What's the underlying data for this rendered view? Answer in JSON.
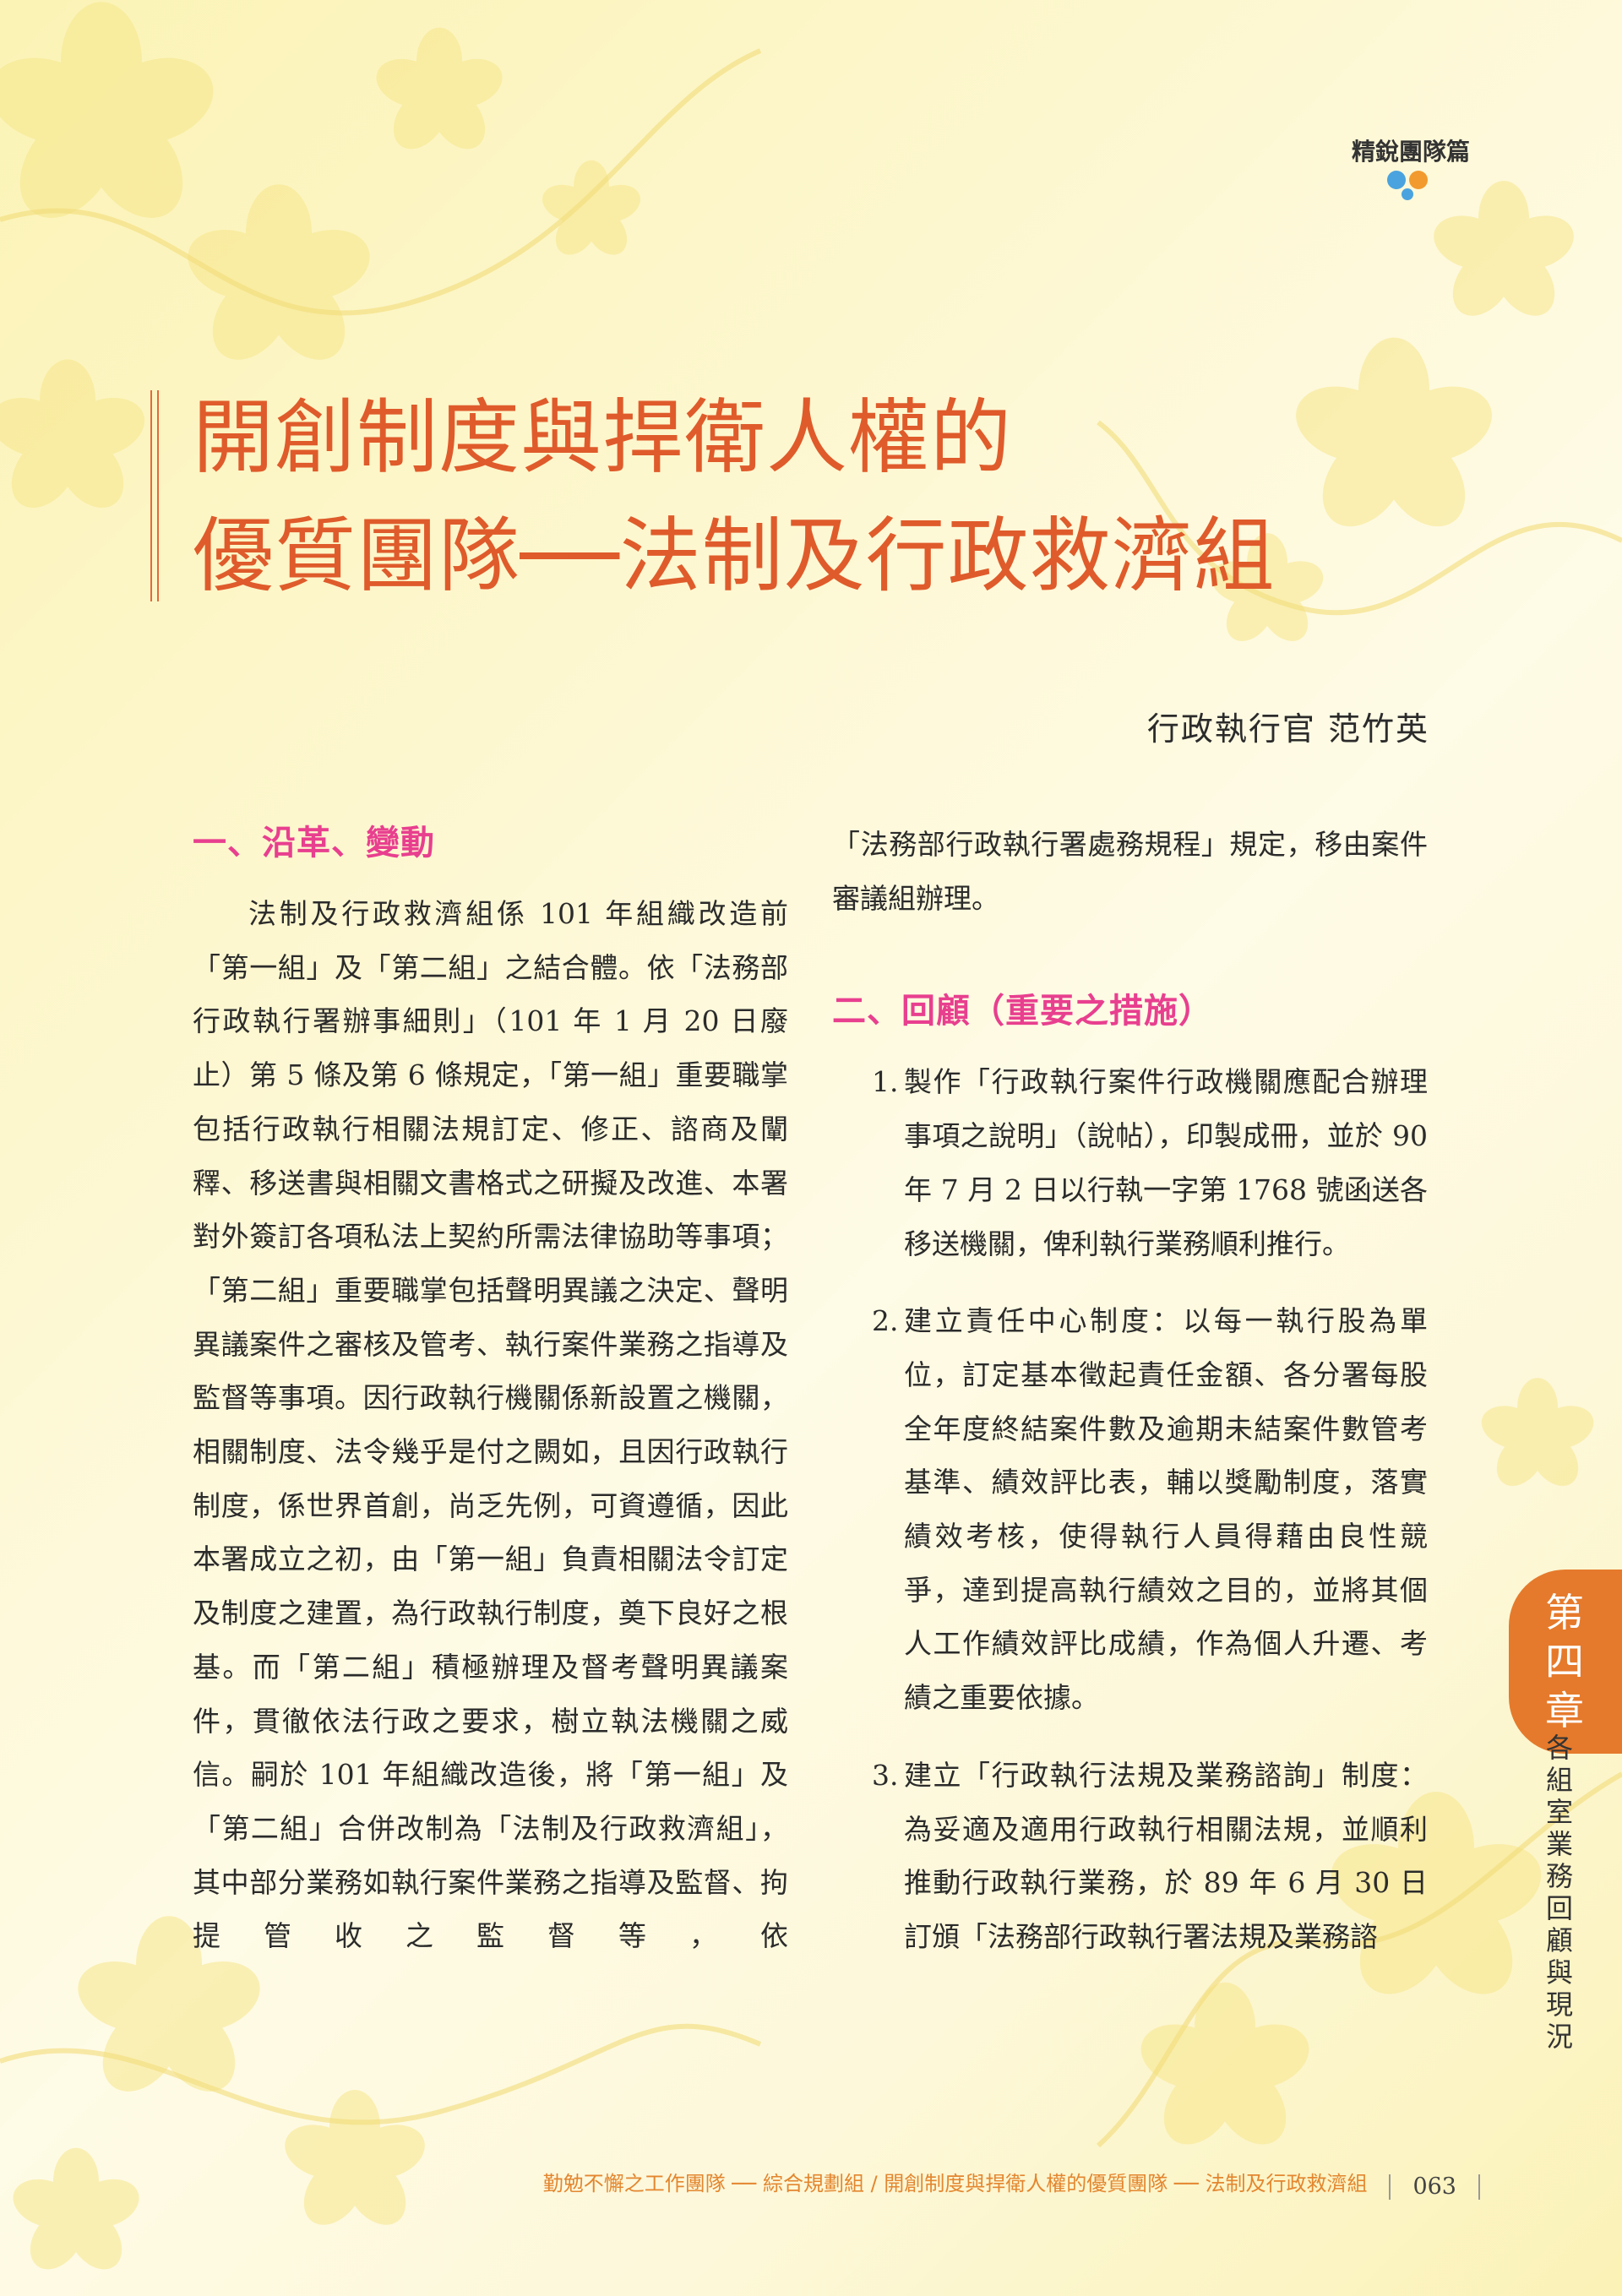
{
  "header": {
    "section_tag": "精銳團隊篇"
  },
  "title": {
    "line1": "開創制度與捍衛人權的",
    "line2": "優質團隊──法制及行政救濟組"
  },
  "author": "行政執行官  范竹英",
  "section1": {
    "heading": "一、沿革、變動",
    "paragraph": "法制及行政救濟組係 101 年組織改造前「第一組」及「第二組」之結合體。依「法務部行政執行署辦事細則」（101 年 1 月 20 日廢止）第 5 條及第 6 條規定，「第一組」重要職掌包括行政執行相關法規訂定、修正、諮商及闡釋、移送書與相關文書格式之研擬及改進、本署對外簽訂各項私法上契約所需法律協助等事項；「第二組」重要職掌包括聲明異議之決定、聲明異議案件之審核及管考、執行案件業務之指導及監督等事項。因行政執行機關係新設置之機關，相關制度、法令幾乎是付之闕如，且因行政執行制度，係世界首創，尚乏先例，可資遵循，因此本署成立之初，由「第一組」負責相關法令訂定及制度之建置，為行政執行制度，奠下良好之根基。而「第二組」積極辦理及督考聲明異議案件，貫徹依法行政之要求，樹立執法機關之威信。嗣於 101 年組織改造後，將「第一組」及「第二組」合併改制為「法制及行政救濟組」，其中部分業務如執行案件業務之指導及監督、拘提管收之監督等，依",
    "continuation": "「法務部行政執行署處務規程」規定，移由案件審議組辦理。"
  },
  "section2": {
    "heading": "二、回顧（重要之措施）",
    "items": [
      {
        "num": "1.",
        "text": "製作「行政執行案件行政機關應配合辦理事項之說明」（說帖），印製成冊，並於 90 年 7 月 2 日以行執一字第 1768 號函送各移送機關，俾利執行業務順利推行。"
      },
      {
        "num": "2.",
        "text": "建立責任中心制度：以每一執行股為單位，訂定基本徵起責任金額、各分署每股全年度終結案件數及逾期未結案件數管考基準、績效評比表，輔以獎勵制度，落實績效考核，使得執行人員得藉由良性競爭，達到提高執行績效之目的，並將其個人工作績效評比成績，作為個人升遷、考績之重要依據。"
      },
      {
        "num": "3.",
        "text": "建立「行政執行法規及業務諮詢」制度：為妥適及適用行政執行相關法規，並順利推動行政執行業務，於 89 年 6 月 30 日訂頒「法務部行政執行署法規及業務諮"
      }
    ]
  },
  "sidebar": {
    "chapter": "第四章",
    "chapter_title": "各組室業務回顧與現況"
  },
  "footer": {
    "text": "勤勉不懈之工作團隊 ── 綜合規劃組 / 開創制度與捍衛人權的優質團隊 ── 法制及行政救濟組",
    "page_number": "063"
  },
  "colors": {
    "title": "#df5b2b",
    "heading": "#e83f8f",
    "chapter_tab": "#e57a2c",
    "footer_text": "#e3862f"
  }
}
